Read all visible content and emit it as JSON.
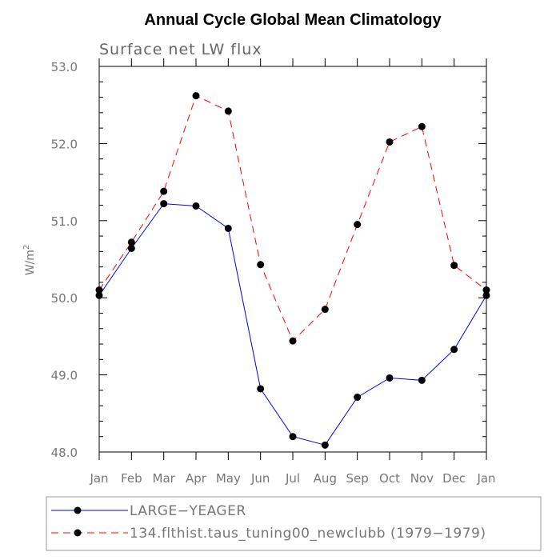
{
  "chart_data": {
    "type": "line",
    "title": "Annual Cycle Global Mean Climatology",
    "subtitle": "Surface net LW flux",
    "ylabel": "W/m",
    "ylabel_sup": "2",
    "xlabel": "",
    "categories": [
      "Jan",
      "Feb",
      "Mar",
      "Apr",
      "May",
      "Jun",
      "Jul",
      "Aug",
      "Sep",
      "Oct",
      "Nov",
      "Dec",
      "Jan"
    ],
    "ylim": [
      48.0,
      53.0
    ],
    "yticks": [
      48.0,
      49.0,
      50.0,
      51.0,
      52.0,
      53.0
    ],
    "ytick_labels": [
      "48.0",
      "49.0",
      "50.0",
      "51.0",
      "52.0",
      "53.0"
    ],
    "grid": false,
    "legend_position": "bottom",
    "series": [
      {
        "name": "LARGE−YEAGER",
        "color": "#0000ff",
        "style": "solid",
        "values": [
          50.03,
          50.64,
          51.22,
          51.19,
          50.9,
          48.82,
          48.2,
          48.09,
          48.71,
          48.96,
          48.93,
          49.33,
          50.03
        ]
      },
      {
        "name": "134.flthist.taus_tuning00_newclubb (1979−1979)",
        "color": "#ff0000",
        "style": "dashed",
        "values": [
          50.1,
          50.72,
          51.38,
          52.62,
          52.42,
          50.43,
          49.44,
          49.85,
          50.95,
          52.02,
          52.22,
          50.42,
          50.1
        ]
      }
    ]
  }
}
